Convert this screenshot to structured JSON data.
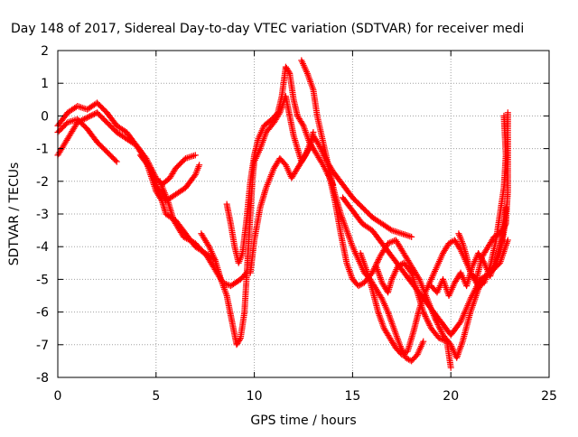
{
  "chart_data": {
    "type": "scatter",
    "title": "Day 148 of 2017, Sidereal Day-to-day VTEC variation (SDTVAR) for receiver medi",
    "xlabel": "GPS time / hours",
    "ylabel": "SDTVAR / TECUs",
    "xlim": [
      0,
      25
    ],
    "ylim": [
      -8,
      2
    ],
    "xticks": [
      0,
      5,
      10,
      15,
      20,
      25
    ],
    "yticks": [
      -8,
      -7,
      -6,
      -5,
      -4,
      -3,
      -2,
      -1,
      0,
      1,
      2
    ],
    "grid": true,
    "marker": "+",
    "color": "#ff0000",
    "series": [
      {
        "points": [
          [
            0.0,
            -0.5
          ],
          [
            0.5,
            -0.2
          ],
          [
            1.0,
            -0.1
          ],
          [
            1.5,
            -0.4
          ],
          [
            2.0,
            -0.8
          ],
          [
            2.5,
            -1.1
          ],
          [
            3.0,
            -1.4
          ]
        ]
      },
      {
        "points": [
          [
            0.0,
            -1.2
          ],
          [
            0.5,
            -0.7
          ],
          [
            1.0,
            -0.2
          ],
          [
            1.5,
            -0.05
          ],
          [
            2.0,
            0.1
          ],
          [
            2.5,
            -0.2
          ],
          [
            3.0,
            -0.5
          ],
          [
            3.5,
            -0.7
          ],
          [
            4.0,
            -0.9
          ],
          [
            4.5,
            -1.3
          ],
          [
            5.0,
            -1.9
          ],
          [
            5.3,
            -2.1
          ],
          [
            5.7,
            -1.9
          ],
          [
            6.0,
            -1.6
          ],
          [
            6.5,
            -1.3
          ],
          [
            7.0,
            -1.2
          ]
        ]
      },
      {
        "points": [
          [
            0.0,
            -0.3
          ],
          [
            0.5,
            0.1
          ],
          [
            1.0,
            0.3
          ],
          [
            1.5,
            0.2
          ],
          [
            2.0,
            0.4
          ],
          [
            2.5,
            0.1
          ],
          [
            3.0,
            -0.3
          ],
          [
            3.5,
            -0.5
          ],
          [
            4.0,
            -0.9
          ],
          [
            4.5,
            -1.4
          ],
          [
            5.0,
            -2.3
          ],
          [
            5.3,
            -2.6
          ],
          [
            5.5,
            -3.0
          ],
          [
            6.0,
            -3.2
          ],
          [
            6.5,
            -3.6
          ],
          [
            7.0,
            -4.0
          ],
          [
            7.5,
            -4.2
          ],
          [
            8.0,
            -4.4
          ]
        ]
      },
      {
        "points": [
          [
            4.2,
            -1.2
          ],
          [
            4.7,
            -1.6
          ],
          [
            5.0,
            -2.1
          ],
          [
            5.5,
            -2.6
          ],
          [
            6.0,
            -2.4
          ],
          [
            6.5,
            -2.2
          ],
          [
            7.0,
            -1.8
          ],
          [
            7.2,
            -1.5
          ]
        ]
      },
      {
        "points": [
          [
            5.2,
            -2.0
          ],
          [
            5.6,
            -2.6
          ],
          [
            5.9,
            -3.2
          ],
          [
            6.4,
            -3.7
          ],
          [
            7.0,
            -3.9
          ],
          [
            7.6,
            -4.3
          ],
          [
            8.0,
            -4.7
          ],
          [
            8.4,
            -5.1
          ],
          [
            8.8,
            -5.2
          ],
          [
            9.3,
            -5.0
          ],
          [
            9.6,
            -4.8
          ]
        ]
      },
      {
        "points": [
          [
            7.3,
            -3.6
          ],
          [
            7.7,
            -4.0
          ],
          [
            8.0,
            -4.4
          ],
          [
            8.3,
            -5.0
          ],
          [
            8.6,
            -5.5
          ],
          [
            8.8,
            -6.1
          ],
          [
            9.0,
            -6.7
          ],
          [
            9.1,
            -7.0
          ],
          [
            9.3,
            -6.8
          ],
          [
            9.5,
            -6.0
          ],
          [
            9.6,
            -5.0
          ],
          [
            9.7,
            -4.0
          ],
          [
            9.8,
            -3.0
          ],
          [
            9.9,
            -2.0
          ],
          [
            10.0,
            -1.4
          ],
          [
            10.3,
            -1.0
          ],
          [
            10.6,
            -0.5
          ],
          [
            11.0,
            -0.2
          ],
          [
            11.3,
            0.1
          ],
          [
            11.6,
            0.6
          ],
          [
            11.8,
            0.0
          ],
          [
            12.0,
            -0.6
          ],
          [
            12.2,
            -1.0
          ],
          [
            12.4,
            -1.4
          ],
          [
            12.6,
            -1.2
          ],
          [
            12.8,
            -0.9
          ],
          [
            13.0,
            -0.5
          ]
        ]
      },
      {
        "points": [
          [
            8.6,
            -2.7
          ],
          [
            8.8,
            -3.3
          ],
          [
            9.0,
            -4.0
          ],
          [
            9.2,
            -4.5
          ],
          [
            9.4,
            -4.2
          ],
          [
            9.6,
            -3.2
          ],
          [
            9.8,
            -2.0
          ],
          [
            10.0,
            -1.2
          ],
          [
            10.2,
            -0.7
          ],
          [
            10.5,
            -0.3
          ],
          [
            10.9,
            -0.1
          ],
          [
            11.2,
            0.1
          ],
          [
            11.4,
            0.6
          ],
          [
            11.6,
            1.5
          ],
          [
            11.8,
            1.3
          ],
          [
            12.0,
            0.5
          ],
          [
            12.2,
            0.0
          ],
          [
            12.5,
            -0.3
          ],
          [
            12.8,
            -0.8
          ],
          [
            13.0,
            -1.0
          ],
          [
            13.5,
            -1.5
          ],
          [
            14.0,
            -2.1
          ]
        ]
      },
      {
        "points": [
          [
            9.8,
            -4.8
          ],
          [
            10.0,
            -3.8
          ],
          [
            10.3,
            -2.8
          ],
          [
            10.6,
            -2.2
          ],
          [
            11.0,
            -1.6
          ],
          [
            11.3,
            -1.3
          ],
          [
            11.6,
            -1.5
          ],
          [
            11.9,
            -1.9
          ],
          [
            12.2,
            -1.6
          ],
          [
            12.5,
            -1.3
          ],
          [
            12.8,
            -1.0
          ],
          [
            13.0,
            -0.6
          ],
          [
            13.3,
            -0.9
          ],
          [
            13.7,
            -1.4
          ],
          [
            14.0,
            -1.7
          ],
          [
            14.5,
            -2.1
          ],
          [
            15.0,
            -2.5
          ],
          [
            15.5,
            -2.8
          ],
          [
            16.0,
            -3.1
          ],
          [
            16.5,
            -3.3
          ],
          [
            17.0,
            -3.5
          ],
          [
            17.5,
            -3.6
          ],
          [
            18.0,
            -3.7
          ]
        ]
      },
      {
        "points": [
          [
            12.4,
            1.7
          ],
          [
            12.7,
            1.3
          ],
          [
            13.0,
            0.8
          ],
          [
            13.2,
            0.0
          ],
          [
            13.5,
            -0.8
          ],
          [
            13.8,
            -1.6
          ],
          [
            14.1,
            -2.4
          ],
          [
            14.4,
            -3.0
          ],
          [
            14.7,
            -3.5
          ],
          [
            15.0,
            -4.0
          ],
          [
            15.3,
            -4.4
          ],
          [
            15.6,
            -4.8
          ],
          [
            15.9,
            -5.0
          ],
          [
            16.2,
            -5.3
          ],
          [
            16.5,
            -5.6
          ],
          [
            16.8,
            -6.0
          ],
          [
            17.1,
            -6.5
          ],
          [
            17.4,
            -7.0
          ],
          [
            17.7,
            -7.4
          ],
          [
            18.0,
            -7.5
          ],
          [
            18.3,
            -7.3
          ],
          [
            18.6,
            -6.9
          ]
        ]
      },
      {
        "points": [
          [
            13.8,
            -1.8
          ],
          [
            14.1,
            -2.6
          ],
          [
            14.4,
            -3.6
          ],
          [
            14.7,
            -4.5
          ],
          [
            15.0,
            -5.0
          ],
          [
            15.3,
            -5.2
          ],
          [
            15.6,
            -5.1
          ],
          [
            16.0,
            -4.8
          ],
          [
            16.4,
            -4.3
          ],
          [
            16.8,
            -3.9
          ],
          [
            17.2,
            -3.8
          ],
          [
            17.6,
            -4.2
          ],
          [
            18.0,
            -4.6
          ],
          [
            18.4,
            -5.0
          ],
          [
            18.8,
            -5.6
          ],
          [
            19.2,
            -6.2
          ],
          [
            19.6,
            -6.7
          ],
          [
            20.0,
            -7.0
          ],
          [
            20.3,
            -7.4
          ],
          [
            20.6,
            -6.9
          ],
          [
            21.0,
            -6.0
          ],
          [
            21.4,
            -5.3
          ],
          [
            21.8,
            -4.9
          ],
          [
            22.2,
            -4.6
          ],
          [
            22.5,
            -4.2
          ],
          [
            22.8,
            -3.2
          ]
        ]
      },
      {
        "points": [
          [
            15.4,
            -4.2
          ],
          [
            15.7,
            -4.7
          ],
          [
            16.0,
            -5.3
          ],
          [
            16.3,
            -6.0
          ],
          [
            16.6,
            -6.5
          ],
          [
            16.9,
            -6.8
          ],
          [
            17.2,
            -7.1
          ],
          [
            17.5,
            -7.3
          ],
          [
            17.8,
            -7.2
          ],
          [
            18.1,
            -6.6
          ],
          [
            18.4,
            -5.9
          ],
          [
            18.7,
            -5.4
          ],
          [
            19.0,
            -5.0
          ],
          [
            19.3,
            -4.6
          ],
          [
            19.6,
            -4.2
          ],
          [
            19.9,
            -3.9
          ],
          [
            20.2,
            -3.8
          ],
          [
            20.5,
            -4.1
          ],
          [
            20.8,
            -4.5
          ],
          [
            21.1,
            -4.9
          ],
          [
            21.4,
            -5.2
          ],
          [
            21.7,
            -5.1
          ],
          [
            22.0,
            -4.6
          ],
          [
            22.3,
            -3.8
          ],
          [
            22.5,
            -3.0
          ],
          [
            22.7,
            -2.2
          ],
          [
            22.8,
            -1.2
          ],
          [
            22.7,
            0.0
          ]
        ]
      },
      {
        "points": [
          [
            14.5,
            -2.5
          ],
          [
            15.0,
            -2.9
          ],
          [
            15.5,
            -3.3
          ],
          [
            16.0,
            -3.5
          ],
          [
            16.5,
            -3.9
          ],
          [
            17.0,
            -4.3
          ],
          [
            17.5,
            -4.7
          ],
          [
            18.0,
            -5.1
          ],
          [
            18.5,
            -5.5
          ],
          [
            19.0,
            -5.9
          ],
          [
            19.5,
            -6.3
          ],
          [
            20.0,
            -6.7
          ],
          [
            20.5,
            -6.3
          ],
          [
            21.0,
            -5.6
          ],
          [
            21.5,
            -5.0
          ],
          [
            22.0,
            -4.8
          ],
          [
            22.5,
            -4.5
          ],
          [
            22.9,
            -3.8
          ]
        ]
      },
      {
        "points": [
          [
            19.0,
            -5.2
          ],
          [
            19.3,
            -5.4
          ],
          [
            19.6,
            -5.0
          ],
          [
            19.9,
            -5.5
          ],
          [
            20.2,
            -5.1
          ],
          [
            20.5,
            -4.8
          ],
          [
            20.8,
            -5.2
          ],
          [
            21.1,
            -4.6
          ],
          [
            21.4,
            -4.2
          ],
          [
            21.7,
            -4.5
          ],
          [
            22.0,
            -4.9
          ],
          [
            22.3,
            -4.4
          ],
          [
            22.6,
            -3.8
          ],
          [
            22.8,
            -2.8
          ]
        ]
      },
      {
        "points": [
          [
            16.2,
            -4.6
          ],
          [
            16.5,
            -5.1
          ],
          [
            16.8,
            -5.4
          ],
          [
            17.0,
            -5.0
          ],
          [
            17.3,
            -4.6
          ],
          [
            17.6,
            -4.5
          ],
          [
            18.0,
            -4.8
          ],
          [
            18.3,
            -5.4
          ],
          [
            18.6,
            -6.0
          ],
          [
            19.0,
            -6.5
          ],
          [
            19.4,
            -6.8
          ],
          [
            19.8,
            -6.9
          ],
          [
            20.0,
            -7.7
          ]
        ]
      },
      {
        "points": [
          [
            20.4,
            -3.6
          ],
          [
            20.6,
            -3.9
          ],
          [
            20.8,
            -4.3
          ],
          [
            21.0,
            -4.8
          ],
          [
            21.3,
            -5.0
          ],
          [
            21.6,
            -4.3
          ],
          [
            21.9,
            -4.0
          ],
          [
            22.2,
            -3.7
          ],
          [
            22.5,
            -3.6
          ],
          [
            22.8,
            -3.3
          ],
          [
            22.9,
            -2.3
          ],
          [
            22.9,
            -1.0
          ],
          [
            22.9,
            0.1
          ]
        ]
      }
    ]
  }
}
